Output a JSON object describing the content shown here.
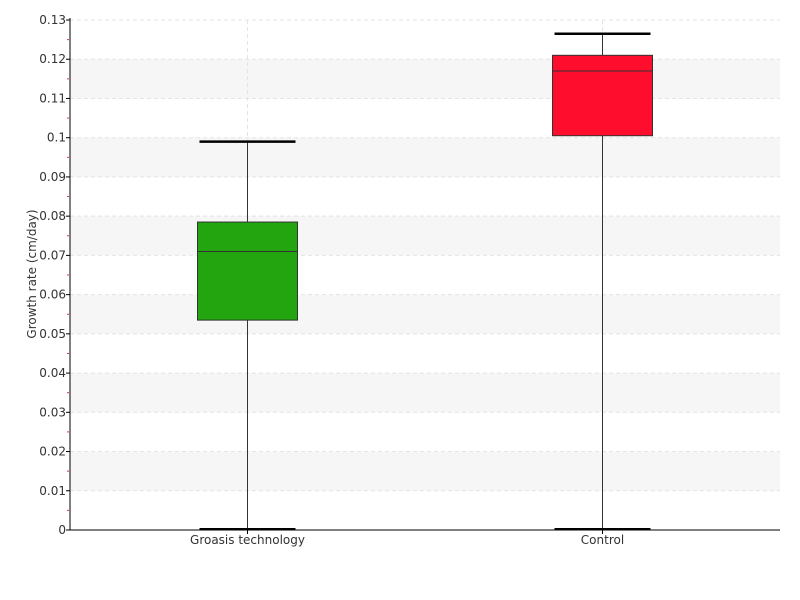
{
  "chart_data": {
    "type": "box",
    "ylabel": "Growth rate (cm/day)",
    "xlabel": "",
    "ylim": [
      0,
      0.13
    ],
    "yticks": [
      "0",
      "0.01",
      "0.02",
      "0.03",
      "0.04",
      "0.05",
      "0.06",
      "0.07",
      "0.08",
      "0.09",
      "0.1",
      "0.11",
      "0.12",
      "0.13"
    ],
    "grid": true,
    "legend": "none",
    "categories": [
      "Groasis technology",
      "Control"
    ],
    "boxes": [
      {
        "category": "Groasis technology",
        "min": 0.0002,
        "q1": 0.0535,
        "median": 0.071,
        "q3": 0.0785,
        "max": 0.099,
        "color": "#22a50f"
      },
      {
        "category": "Control",
        "min": 0.0002,
        "q1": 0.1005,
        "median": 0.117,
        "q3": 0.121,
        "max": 0.1265,
        "color": "#ff0d2d"
      }
    ]
  }
}
